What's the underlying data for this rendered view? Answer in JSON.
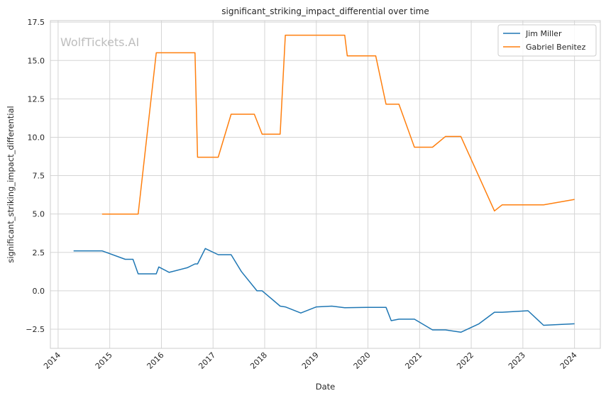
{
  "chart_data": {
    "type": "line",
    "title": "significant_striking_impact_differential over time",
    "xlabel": "Date",
    "ylabel": "significant_striking_impact_differential",
    "watermark": "WolfTickets.AI",
    "xlim": [
      2013.85,
      2024.5
    ],
    "ylim": [
      -3.75,
      17.6
    ],
    "x_ticks": [
      2014,
      2015,
      2016,
      2017,
      2018,
      2019,
      2020,
      2021,
      2022,
      2023,
      2024
    ],
    "y_ticks": [
      -2.5,
      0.0,
      2.5,
      5.0,
      7.5,
      10.0,
      12.5,
      15.0,
      17.5
    ],
    "y_tick_labels": [
      "−2.5",
      "0.0",
      "2.5",
      "5.0",
      "7.5",
      "10.0",
      "12.5",
      "15.0",
      "17.5"
    ],
    "grid": true,
    "legend_position": "top-right",
    "series": [
      {
        "name": "Jim Miller",
        "color": "#1f77b4",
        "points": [
          [
            2014.3,
            2.6
          ],
          [
            2014.85,
            2.6
          ],
          [
            2015.3,
            2.05
          ],
          [
            2015.45,
            2.05
          ],
          [
            2015.55,
            1.1
          ],
          [
            2015.9,
            1.1
          ],
          [
            2015.95,
            1.55
          ],
          [
            2016.15,
            1.2
          ],
          [
            2016.5,
            1.5
          ],
          [
            2016.65,
            1.75
          ],
          [
            2016.7,
            1.75
          ],
          [
            2016.85,
            2.75
          ],
          [
            2017.1,
            2.35
          ],
          [
            2017.35,
            2.35
          ],
          [
            2017.55,
            1.25
          ],
          [
            2017.85,
            0.0
          ],
          [
            2017.95,
            0.0
          ],
          [
            2018.3,
            -1.0
          ],
          [
            2018.4,
            -1.05
          ],
          [
            2018.7,
            -1.45
          ],
          [
            2019.0,
            -1.05
          ],
          [
            2019.3,
            -1.0
          ],
          [
            2019.55,
            -1.1
          ],
          [
            2020.0,
            -1.08
          ],
          [
            2020.35,
            -1.08
          ],
          [
            2020.45,
            -1.95
          ],
          [
            2020.6,
            -1.85
          ],
          [
            2020.9,
            -1.85
          ],
          [
            2021.25,
            -2.55
          ],
          [
            2021.5,
            -2.55
          ],
          [
            2021.8,
            -2.7
          ],
          [
            2022.15,
            -2.15
          ],
          [
            2022.45,
            -1.4
          ],
          [
            2022.6,
            -1.4
          ],
          [
            2023.1,
            -1.3
          ],
          [
            2023.4,
            -2.25
          ],
          [
            2024.0,
            -2.15
          ]
        ]
      },
      {
        "name": "Gabriel Benitez",
        "color": "#ff7f0e",
        "points": [
          [
            2014.85,
            5.0
          ],
          [
            2015.55,
            5.0
          ],
          [
            2015.9,
            15.5
          ],
          [
            2016.65,
            15.5
          ],
          [
            2016.7,
            8.7
          ],
          [
            2017.1,
            8.7
          ],
          [
            2017.35,
            11.5
          ],
          [
            2017.8,
            11.5
          ],
          [
            2017.95,
            10.2
          ],
          [
            2018.3,
            10.2
          ],
          [
            2018.4,
            16.65
          ],
          [
            2019.55,
            16.65
          ],
          [
            2019.6,
            15.3
          ],
          [
            2020.15,
            15.3
          ],
          [
            2020.35,
            12.15
          ],
          [
            2020.6,
            12.15
          ],
          [
            2020.9,
            9.35
          ],
          [
            2021.25,
            9.35
          ],
          [
            2021.5,
            10.05
          ],
          [
            2021.8,
            10.05
          ],
          [
            2022.45,
            5.2
          ],
          [
            2022.6,
            5.6
          ],
          [
            2023.4,
            5.6
          ],
          [
            2024.0,
            5.95
          ]
        ]
      }
    ]
  }
}
